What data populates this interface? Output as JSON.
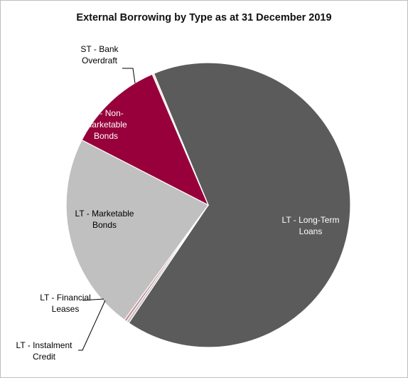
{
  "chart_data": {
    "type": "pie",
    "title": "External Borrowing by Type as at 31 December 2019",
    "slices": [
      {
        "label": "LT - Long-Term Loans",
        "lines": [
          "LT - Long-Term",
          "Loans"
        ],
        "value": 65.7,
        "color": "#5b5b5b",
        "label_color": "#ffffff"
      },
      {
        "label": "LT - Instalment Credit",
        "lines": [
          "LT - Instalment",
          "Credit"
        ],
        "value": 0.3,
        "color": "#bfbfbf",
        "label_color": "#000000"
      },
      {
        "label": "LT - Financial Leases",
        "lines": [
          "LT - Financial",
          "Leases"
        ],
        "value": 0.3,
        "color": "#c98f97",
        "label_color": "#000000"
      },
      {
        "label": "LT - Marketable Bonds",
        "lines": [
          "LT - Marketable",
          "Bonds"
        ],
        "value": 22.5,
        "color": "#c0c0c0",
        "label_color": "#000000"
      },
      {
        "label": "LT - Non-Marketable Bonds",
        "lines": [
          "LT - Non-",
          "Marketable",
          "Bonds"
        ],
        "value": 11.0,
        "color": "#97003a",
        "label_color": "#ffffff"
      },
      {
        "label": "ST - Bank Overdraft",
        "lines": [
          "ST - Bank",
          "Overdraft"
        ],
        "value": 0.2,
        "color": "#e9e1c8",
        "label_color": "#000000"
      }
    ],
    "start_angle_deg": 337.5,
    "direction": "clockwise",
    "legend": "none"
  }
}
